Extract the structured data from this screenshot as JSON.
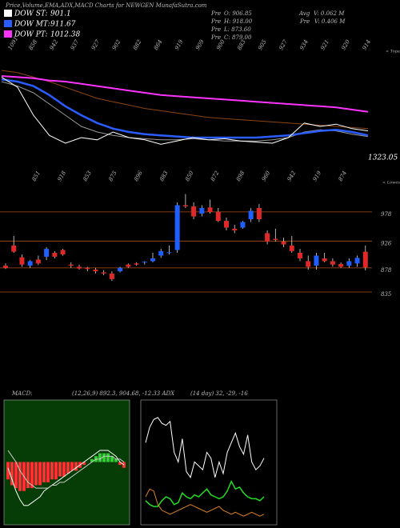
{
  "header": {
    "title": "Price,Volume,EMA,ADX,MACD Charts for NEWGEN MunafaSutra.com",
    "legend": [
      {
        "name": "DOW ST:",
        "value": "901.1",
        "color": "#ffffff"
      },
      {
        "name": "DOW MT:",
        "value": "911.67",
        "color": "#2a5cff"
      },
      {
        "name": "DOW PT:",
        "value": "1012.38",
        "color": "#ff33ff"
      }
    ],
    "info": [
      {
        "label": "Pre",
        "text": "O: 906.85"
      },
      {
        "label": "Pre",
        "text": "H: 918.00"
      },
      {
        "label": "Pre",
        "text": "L: 873.60"
      },
      {
        "label": "Pre",
        "text": "C: 879.00"
      }
    ],
    "info2": [
      {
        "label": "Avg",
        "text": "V: 0.062 M"
      },
      {
        "label": "Pre",
        "text": "V: 0.406 M"
      }
    ]
  },
  "chart_data": [
    {
      "type": "line",
      "top_labels": [
        "1091",
        "858",
        "942",
        "937",
        "927",
        "902",
        "882",
        "864",
        "919",
        "909",
        "900",
        "883",
        "905",
        "927",
        "934",
        "921",
        "920",
        "914"
      ],
      "side_label": "< Topa",
      "corner_label": "1323.05",
      "ylim": [
        0,
        100
      ],
      "series": [
        {
          "color": "#8b4513",
          "values": [
            80,
            78,
            74,
            70,
            65,
            60,
            55,
            52,
            49,
            46,
            44,
            42,
            40,
            38,
            37,
            36,
            35,
            34,
            33,
            32,
            31,
            30,
            29,
            28
          ]
        },
        {
          "color": "#999999",
          "values": [
            70,
            66,
            60,
            50,
            40,
            30,
            25,
            22,
            20,
            19,
            18,
            18,
            19,
            18,
            17,
            17,
            17,
            18,
            20,
            25,
            27,
            26,
            23,
            21
          ]
        },
        {
          "color": "#ff33ff",
          "values": [
            75,
            74,
            73,
            71,
            70,
            68,
            66,
            64,
            62,
            60,
            58,
            57,
            56,
            55,
            54,
            53,
            52,
            51,
            50,
            49,
            48,
            47,
            45,
            43
          ]
        },
        {
          "color": "#2a5cff",
          "values": [
            72,
            70,
            66,
            58,
            48,
            40,
            33,
            28,
            25,
            23,
            22,
            21,
            20,
            20,
            20,
            20,
            20,
            21,
            22,
            24,
            26,
            27,
            25,
            22
          ]
        },
        {
          "color": "#ffffff",
          "values": [
            74,
            65,
            40,
            22,
            15,
            20,
            18,
            25,
            20,
            18,
            14,
            17,
            20,
            18,
            19,
            17,
            16,
            15,
            20,
            33,
            30,
            32,
            28,
            26
          ]
        }
      ]
    },
    {
      "type": "candlestick",
      "top_labels": [
        "851",
        "918",
        "853",
        "875",
        "896",
        "883",
        "850",
        "872",
        "898",
        "960",
        "942",
        "919",
        "874"
      ],
      "side_label": "< Lowes",
      "ylim": [
        825,
        1035
      ],
      "yticks": [
        835,
        878,
        926,
        978
      ],
      "open": [
        882,
        918,
        897,
        882,
        893,
        898,
        905,
        910,
        884,
        880,
        878,
        875,
        870,
        868,
        872,
        884,
        886,
        888,
        890,
        900,
        905,
        910,
        990,
        988,
        975,
        986,
        978,
        962,
        948,
        950,
        965,
        985,
        940,
        930,
        925,
        918,
        905,
        890,
        882,
        895,
        890,
        885,
        882,
        886,
        906.85
      ],
      "high": [
        886,
        935,
        902,
        892,
        900,
        915,
        908,
        912,
        888,
        884,
        880,
        878,
        874,
        872,
        880,
        886,
        888,
        890,
        905,
        912,
        918,
        995,
        1010,
        995,
        990,
        1000,
        985,
        968,
        955,
        962,
        985,
        992,
        945,
        948,
        932,
        935,
        912,
        900,
        905,
        905,
        895,
        888,
        895,
        900,
        918
      ],
      "low": [
        876,
        905,
        880,
        878,
        883,
        892,
        895,
        900,
        878,
        875,
        872,
        868,
        865,
        855,
        870,
        878,
        882,
        884,
        888,
        896,
        902,
        905,
        985,
        965,
        970,
        975,
        960,
        945,
        940,
        948,
        960,
        960,
        920,
        925,
        915,
        905,
        890,
        875,
        875,
        888,
        880,
        878,
        878,
        880,
        873.6
      ],
      "close": [
        878,
        907,
        884,
        890,
        886,
        912,
        898,
        902,
        882,
        877,
        876,
        872,
        868,
        858,
        878,
        880,
        884,
        889,
        895,
        908,
        906,
        990,
        988,
        970,
        985,
        978,
        962,
        950,
        945,
        960,
        980,
        965,
        925,
        928,
        920,
        908,
        895,
        880,
        900,
        890,
        884,
        880,
        890,
        896,
        879
      ]
    },
    {
      "type": "macd",
      "text": [
        "MACD:",
        "(12,26,9) 892.3, 904.68, -12.33 ADX"
      ],
      "ylim": [
        -20,
        20
      ],
      "hist": [
        -6,
        -8,
        -9,
        -10,
        -10,
        -9,
        -9,
        -8,
        -8,
        -7,
        -7,
        -6,
        -6,
        -5,
        -5,
        -4,
        -3,
        -3,
        -2,
        -1,
        0,
        1,
        2,
        3,
        3,
        3,
        2,
        1,
        -1,
        -2
      ],
      "macd": [
        -2,
        -6,
        -10,
        -13,
        -15,
        -15,
        -14,
        -13,
        -12,
        -10,
        -9,
        -8,
        -7,
        -6,
        -5,
        -4,
        -3,
        -2,
        -1,
        0,
        1,
        2,
        3,
        4,
        4,
        4,
        3,
        2,
        0,
        -1
      ],
      "signal": [
        4,
        2,
        0,
        -3,
        -5,
        -7,
        -8,
        -9,
        -9,
        -9,
        -9,
        -8,
        -8,
        -7,
        -7,
        -6,
        -5,
        -4,
        -3,
        -2,
        -1,
        0,
        1,
        1,
        2,
        2,
        2,
        1,
        1,
        0
      ]
    },
    {
      "type": "adx",
      "text": [
        "(14 day) 32, -29, -16"
      ],
      "ylim": [
        0,
        60
      ],
      "series": [
        {
          "color": "#ffffff",
          "values": [
            40,
            48,
            52,
            53,
            50,
            49,
            51,
            35,
            30,
            42,
            25,
            22,
            30,
            28,
            26,
            35,
            32,
            22,
            30,
            24,
            35,
            40,
            45,
            38,
            34,
            44,
            30,
            26,
            28,
            32
          ]
        },
        {
          "color": "#22dd22",
          "values": [
            10,
            8,
            7,
            7,
            10,
            12,
            11,
            8,
            9,
            14,
            12,
            11,
            13,
            12,
            14,
            16,
            13,
            12,
            11,
            12,
            15,
            20,
            16,
            17,
            14,
            12,
            11,
            11,
            10,
            12
          ]
        },
        {
          "color": "#e08020",
          "values": [
            12,
            16,
            15,
            8,
            5,
            4,
            3,
            4,
            5,
            6,
            7,
            8,
            7,
            6,
            5,
            4,
            5,
            6,
            7,
            5,
            4,
            3,
            4,
            3,
            2,
            3,
            4,
            3,
            2,
            3
          ]
        }
      ]
    }
  ]
}
